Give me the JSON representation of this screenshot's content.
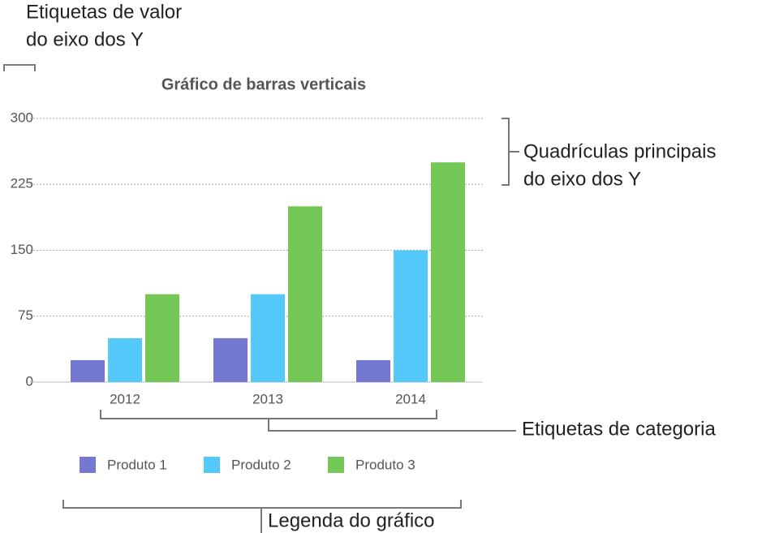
{
  "chart_data": {
    "type": "bar",
    "title": "Gráfico de barras verticais",
    "categories": [
      "2012",
      "2013",
      "2014"
    ],
    "series": [
      {
        "name": "Produto 1",
        "color": "#7478d0",
        "values": [
          25,
          50,
          25
        ]
      },
      {
        "name": "Produto 2",
        "color": "#54c8f8",
        "values": [
          50,
          100,
          150
        ]
      },
      {
        "name": "Produto 3",
        "color": "#74c856",
        "values": [
          100,
          200,
          250
        ]
      }
    ],
    "ylim": [
      0,
      300
    ],
    "yticks": [
      0,
      75,
      150,
      225,
      300
    ],
    "grid": true,
    "legend": "bottom",
    "annotations": [
      {
        "lines": [
          "Etiquetas de valor",
          "do eixo dos Y"
        ]
      },
      {
        "lines": [
          "Quadrículas principais",
          "do eixo dos Y"
        ]
      },
      {
        "lines": [
          "Etiquetas de categoria"
        ]
      },
      {
        "lines": [
          "Legenda do gráfico"
        ]
      }
    ]
  }
}
